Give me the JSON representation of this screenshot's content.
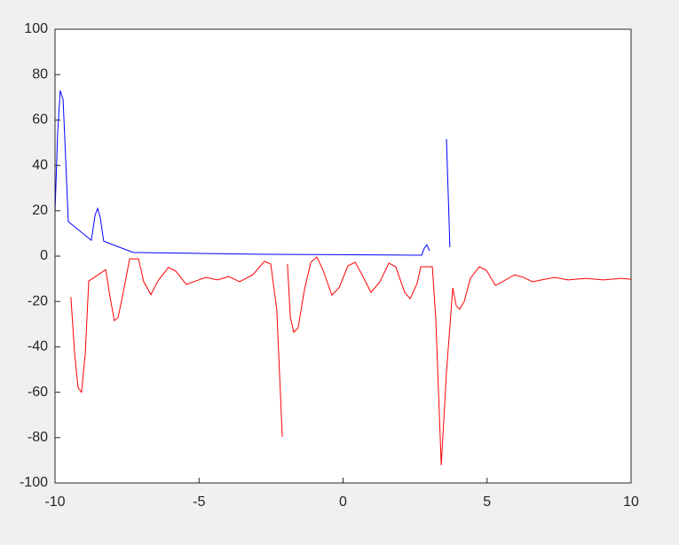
{
  "chart_data": {
    "type": "line",
    "xlim": [
      -10,
      10
    ],
    "xticks": [
      -10,
      -5,
      0,
      5,
      10
    ],
    "ylim": [
      -100,
      100
    ],
    "yticks": [
      -100,
      -80,
      -60,
      -40,
      -20,
      0,
      20,
      40,
      60,
      80,
      100
    ],
    "grid": false,
    "series": [
      {
        "color": "#0000ff",
        "x": [
          -10,
          -9.91,
          -9.82,
          -9.72,
          -9.63,
          -9.54,
          -8.74,
          -8.61,
          -8.52,
          -8.43,
          -8.31,
          -7.29,
          -2.67,
          2.73,
          2.82,
          2.91,
          3.0,
          null,
          3.59,
          3.71
        ],
        "values": [
          19.1,
          54.3,
          73,
          69,
          42.6,
          15.2,
          7,
          18,
          21,
          17,
          6.6,
          1.6,
          0.8,
          0.4,
          3.5,
          5,
          2.3,
          null,
          51.6,
          3.9
        ]
      },
      {
        "color": "#ff0000",
        "x": [
          -9.45,
          -9.32,
          -9.2,
          -9.08,
          -8.95,
          -8.83,
          -8.24,
          -8.09,
          -7.94,
          -7.81,
          -7.63,
          -7.41,
          -7.1,
          -6.92,
          -6.67,
          -6.43,
          -6.06,
          -5.81,
          -5.44,
          -5.13,
          -4.76,
          -4.36,
          -3.96,
          -3.59,
          -3.13,
          -2.73,
          -2.51,
          -2.3,
          -2.11,
          null,
          -1.93,
          -1.83,
          -1.71,
          -1.56,
          -1.34,
          -1.12,
          -0.91,
          -0.69,
          -0.39,
          -0.14,
          0.17,
          0.42,
          0.66,
          0.97,
          1.28,
          1.59,
          1.83,
          2.14,
          2.33,
          2.57,
          2.7,
          3.1,
          3.22,
          3.41,
          3.59,
          3.81,
          3.93,
          4.05,
          4.21,
          4.42,
          4.73,
          4.98,
          5.29,
          5.53,
          5.96,
          6.27,
          6.58,
          6.89,
          7.35,
          7.81,
          8.43,
          9.04,
          9.66,
          10
        ],
        "values": [
          -18,
          -43,
          -58,
          -60,
          -43,
          -11,
          -6,
          -18,
          -28.5,
          -27,
          -16,
          -1.2,
          -1.2,
          -11.3,
          -17,
          -11,
          -5,
          -6.6,
          -12.5,
          -11,
          -9.4,
          -10.5,
          -9,
          -11.3,
          -8.2,
          -2.3,
          -3.5,
          -23.8,
          -79.7,
          null,
          -3.5,
          -27,
          -33.6,
          -31.6,
          -14.8,
          -2.7,
          -0.4,
          -6.3,
          -17.2,
          -14,
          -4.3,
          -2.7,
          -8.2,
          -16,
          -11.3,
          -3.1,
          -4.7,
          -16,
          -18.8,
          -12.1,
          -4.7,
          -4.7,
          -27.7,
          -92.2,
          -51.2,
          -14,
          -21.9,
          -23.4,
          -19.9,
          -9.8,
          -4.7,
          -6.3,
          -12.9,
          -11.3,
          -8.2,
          -9.4,
          -11.3,
          -10.5,
          -9.4,
          -10.5,
          -9.8,
          -10.5,
          -9.8,
          -10.2
        ]
      }
    ]
  }
}
